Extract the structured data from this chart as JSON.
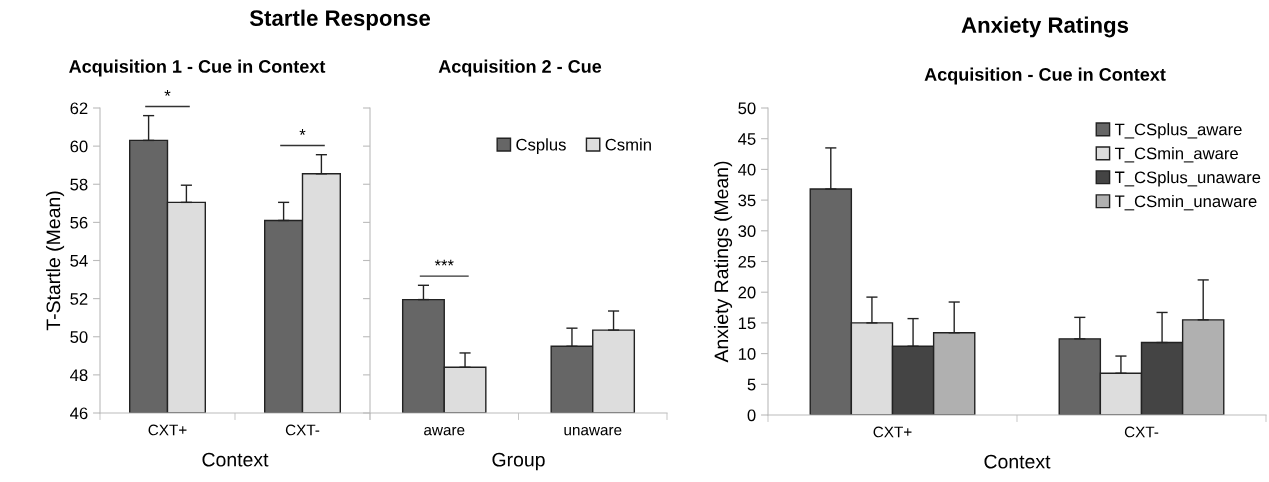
{
  "chart_data": [
    {
      "type": "bar",
      "title": "Startle Response",
      "subtitle": "Acquisition 1 - Cue in Context",
      "xlabel": "Context",
      "ylabel": "T-Startle (Mean)",
      "categories": [
        "CXT+",
        "CXT-"
      ],
      "ylim": [
        46,
        62
      ],
      "yticks": [
        46,
        48,
        50,
        52,
        54,
        56,
        58,
        60,
        62
      ],
      "grid": false,
      "legend": false,
      "series": [
        {
          "color": "#666666",
          "values": [
            60.3,
            56.1
          ],
          "errors": [
            [
              60.3,
              61.6
            ],
            [
              56.1,
              57.05
            ]
          ]
        },
        {
          "color": "#dddddd",
          "values": [
            57.05,
            58.55
          ],
          "errors": [
            [
              57.05,
              57.95
            ],
            [
              58.55,
              59.55
            ]
          ]
        }
      ],
      "annotations": [
        "*",
        "*"
      ]
    },
    {
      "type": "bar",
      "title": "Acquisition 2 - Cue",
      "xlabel": "Group",
      "categories": [
        "aware",
        "unaware"
      ],
      "ylim": [
        46,
        62
      ],
      "yticks": [
        46,
        48,
        50,
        52,
        54,
        56,
        58,
        60,
        62
      ],
      "tick_labels": "x",
      "grid": false,
      "legend": "top right",
      "series": [
        {
          "name": "Csplus",
          "color": "#666666",
          "values": [
            51.95,
            49.5
          ],
          "errors": [
            [
              51.95,
              52.7
            ],
            [
              49.5,
              50.45
            ]
          ]
        },
        {
          "name": "Csmin",
          "color": "#dddddd",
          "values": [
            48.4,
            50.35
          ],
          "errors": [
            [
              48.4,
              49.15
            ],
            [
              50.35,
              51.35
            ]
          ]
        }
      ],
      "annotations": [
        "***"
      ]
    },
    {
      "type": "bar",
      "title": "Anxiety Ratings",
      "subtitle": "Acquisition - Cue in Context",
      "xlabel": "Context",
      "ylabel": "Anxiety Ratings (Mean)",
      "categories": [
        "CXT+",
        "CXT-"
      ],
      "ylim": [
        0,
        50
      ],
      "yticks": [
        0,
        5,
        10,
        15,
        20,
        25,
        30,
        35,
        40,
        45,
        50
      ],
      "grid": false,
      "legend": "top right",
      "series": [
        {
          "name": "T_CSplus_aware",
          "color": "#666666",
          "values": [
            36.8,
            12.4
          ],
          "errors": [
            [
              36.8,
              43.5
            ],
            [
              12.4,
              15.9
            ]
          ]
        },
        {
          "name": "T_CSmin_aware",
          "color": "#dddddd",
          "values": [
            15.0,
            6.8
          ],
          "errors": [
            [
              15.0,
              19.2
            ],
            [
              6.8,
              9.6
            ]
          ]
        },
        {
          "name": "T_CSplus_unaware",
          "color": "#444444",
          "values": [
            11.2,
            11.8
          ],
          "errors": [
            [
              11.2,
              15.7
            ],
            [
              11.8,
              16.7
            ]
          ]
        },
        {
          "name": "T_CSmin_unaware",
          "color": "#b0b0b0",
          "values": [
            13.4,
            15.5
          ],
          "errors": [
            [
              13.4,
              18.4
            ],
            [
              15.5,
              22.0
            ]
          ]
        }
      ]
    }
  ]
}
